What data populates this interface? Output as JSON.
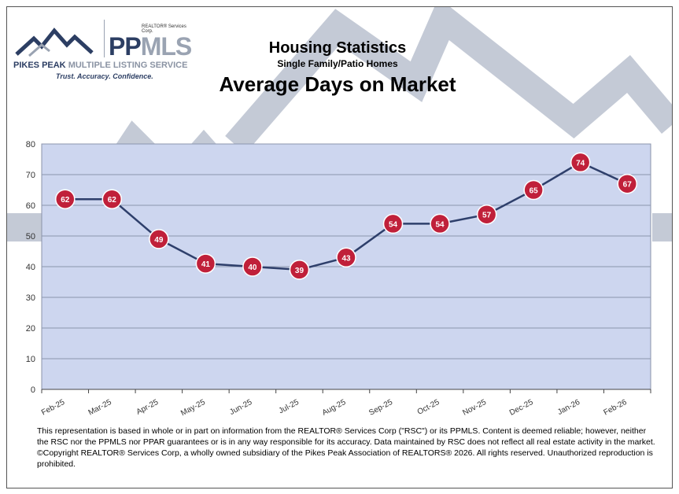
{
  "logo": {
    "corp": "REALTOR® Services Corp.",
    "mark_a": "PP",
    "mark_b": "MLS",
    "full_a": "PIKES PEAK ",
    "full_b": "MULTIPLE LISTING SERVICE",
    "tagline": "Trust. Accuracy. Confidence."
  },
  "colors": {
    "plot_bg": "#cdd6ef",
    "line": "#2e3f6b",
    "marker": "#c0203a",
    "watermark": "#c4cad6"
  },
  "chart_data": {
    "type": "line",
    "title": "Housing Statistics",
    "subtitle": "Single Family/Patio Homes",
    "heading": "Average Days on Market",
    "categories": [
      "Feb-25",
      "Mar-25",
      "Apr-25",
      "May-25",
      "Jun-25",
      "Jul-25",
      "Aug-25",
      "Sep-25",
      "Oct-25",
      "Nov-25",
      "Dec-25",
      "Jan-26",
      "Feb-26"
    ],
    "values": [
      62,
      62,
      49,
      41,
      40,
      39,
      43,
      54,
      54,
      57,
      65,
      74,
      67
    ],
    "ylim": [
      0,
      80
    ],
    "yticks": [
      0,
      10,
      20,
      30,
      40,
      50,
      60,
      70,
      80
    ],
    "grid": true,
    "legend": "none"
  },
  "footer": "This representation is based in whole or in part on information from the REALTOR® Services Corp (\"RSC\") or its PPMLS. Content is deemed reliable; however, neither the RSC nor the PPMLS nor PPAR guarantees or is in any way responsible for its accuracy. Data maintained by RSC does not reflect all real estate activity in the market. ©Copyright REALTOR® Services Corp, a wholly owned subsidiary of the Pikes Peak Association of REALTORS® 2026. All rights reserved. Unauthorized reproduction is prohibited."
}
